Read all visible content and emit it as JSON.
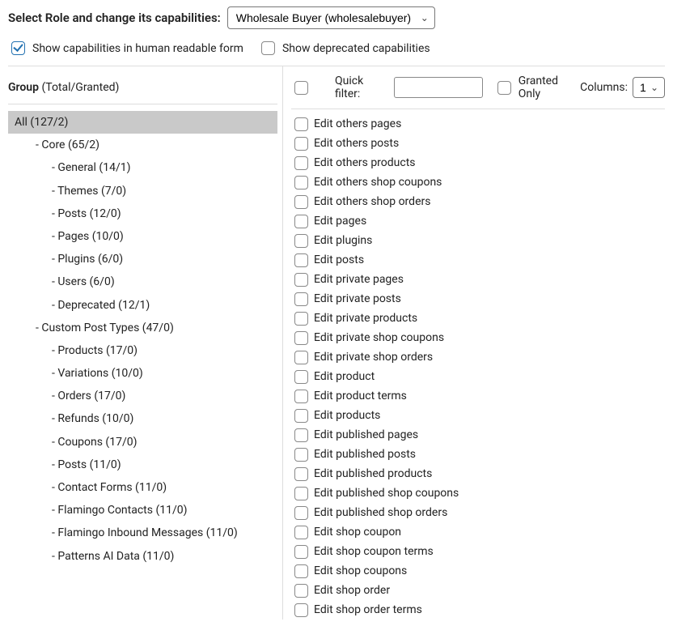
{
  "header": {
    "label": "Select Role and change its capabilities:",
    "role_selected": "Wholesale Buyer (wholesalebuyer)"
  },
  "options": {
    "human_readable": {
      "label": "Show capabilities in human readable form",
      "checked": true
    },
    "deprecated": {
      "label": "Show deprecated capabilities",
      "checked": false
    }
  },
  "left": {
    "header_bold": "Group",
    "header_rest": " (Total/Granted)",
    "tree": [
      {
        "label": "All (127/2)",
        "indent": 0,
        "selected": true
      },
      {
        "label": "- Core (65/2)",
        "indent": 1
      },
      {
        "label": "- General (14/1)",
        "indent": 2
      },
      {
        "label": "- Themes (7/0)",
        "indent": 2
      },
      {
        "label": "- Posts (12/0)",
        "indent": 2
      },
      {
        "label": "- Pages (10/0)",
        "indent": 2
      },
      {
        "label": "- Plugins (6/0)",
        "indent": 2
      },
      {
        "label": "- Users (6/0)",
        "indent": 2
      },
      {
        "label": "- Deprecated (12/1)",
        "indent": 2
      },
      {
        "label": "- Custom Post Types (47/0)",
        "indent": 1
      },
      {
        "label": "- Products (17/0)",
        "indent": 2
      },
      {
        "label": "- Variations (10/0)",
        "indent": 2
      },
      {
        "label": "- Orders (17/0)",
        "indent": 2
      },
      {
        "label": "- Refunds (10/0)",
        "indent": 2
      },
      {
        "label": "- Coupons (17/0)",
        "indent": 2
      },
      {
        "label": "- Posts (11/0)",
        "indent": 2
      },
      {
        "label": "- Contact Forms (11/0)",
        "indent": 2
      },
      {
        "label": "- Flamingo Contacts (11/0)",
        "indent": 2
      },
      {
        "label": "- Flamingo Inbound Messages (11/0)",
        "indent": 2
      },
      {
        "label": "- Patterns AI Data (11/0)",
        "indent": 2
      }
    ]
  },
  "filter": {
    "quick_label": "Quick filter:",
    "quick_value": "",
    "granted_label": "Granted Only",
    "columns_label": "Columns:",
    "columns_value": "1"
  },
  "capabilities": [
    "Edit others pages",
    "Edit others posts",
    "Edit others products",
    "Edit others shop coupons",
    "Edit others shop orders",
    "Edit pages",
    "Edit plugins",
    "Edit posts",
    "Edit private pages",
    "Edit private posts",
    "Edit private products",
    "Edit private shop coupons",
    "Edit private shop orders",
    "Edit product",
    "Edit product terms",
    "Edit products",
    "Edit published pages",
    "Edit published posts",
    "Edit published products",
    "Edit published shop coupons",
    "Edit published shop orders",
    "Edit shop coupon",
    "Edit shop coupon terms",
    "Edit shop coupons",
    "Edit shop order",
    "Edit shop order terms"
  ]
}
